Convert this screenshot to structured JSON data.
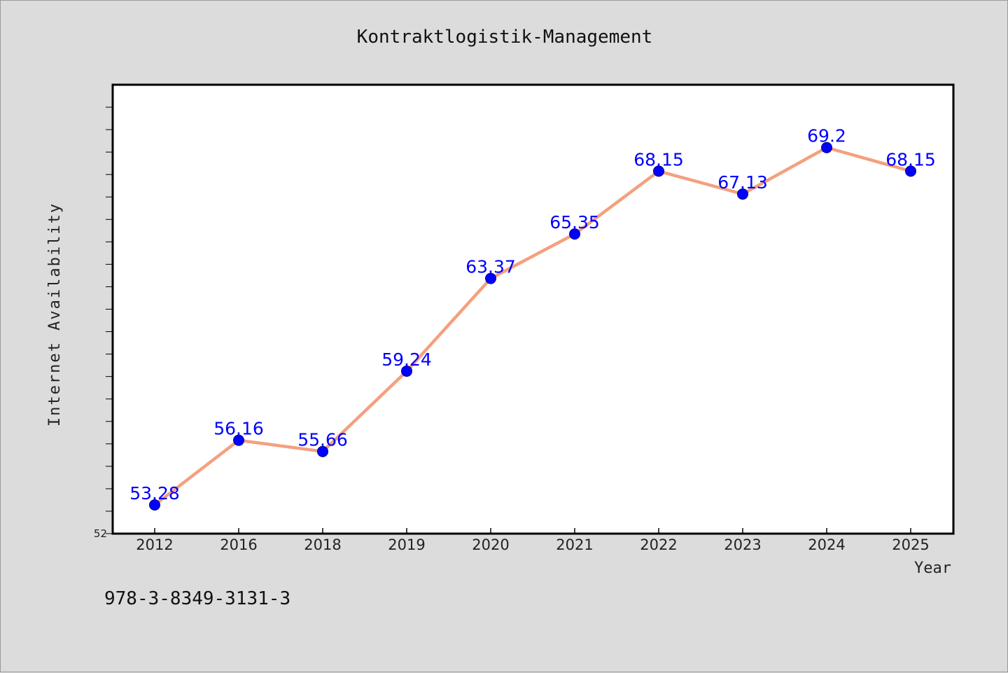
{
  "chart_data": {
    "type": "line",
    "title": "Kontraktlogistik-Management",
    "xlabel": "Year",
    "ylabel": "Internet Availability",
    "categories": [
      "2012",
      "2016",
      "2018",
      "2019",
      "2020",
      "2021",
      "2022",
      "2023",
      "2024",
      "2025"
    ],
    "series": [
      {
        "values": [
          53.28,
          56.16,
          55.66,
          59.24,
          63.37,
          65.35,
          68.15,
          67.13,
          69.2,
          68.15
        ],
        "labels": [
          "53.28",
          "56.16",
          "55.66",
          "59.24",
          "63.37",
          "65.35",
          "68.15",
          "67.13",
          "69.2",
          "68.15"
        ]
      }
    ],
    "ylim": [
      52,
      72
    ],
    "yticks_labeled": [
      "52"
    ],
    "y_minor_tick_step": 1,
    "grid": false,
    "colors": {
      "line": "#f4a07e",
      "marker": "#0000ff",
      "label": "#0000ff",
      "background": "#dcdcdc",
      "plot_bg": "#ffffff"
    }
  },
  "footer": {
    "isbn": "978-3-8349-3131-3"
  }
}
